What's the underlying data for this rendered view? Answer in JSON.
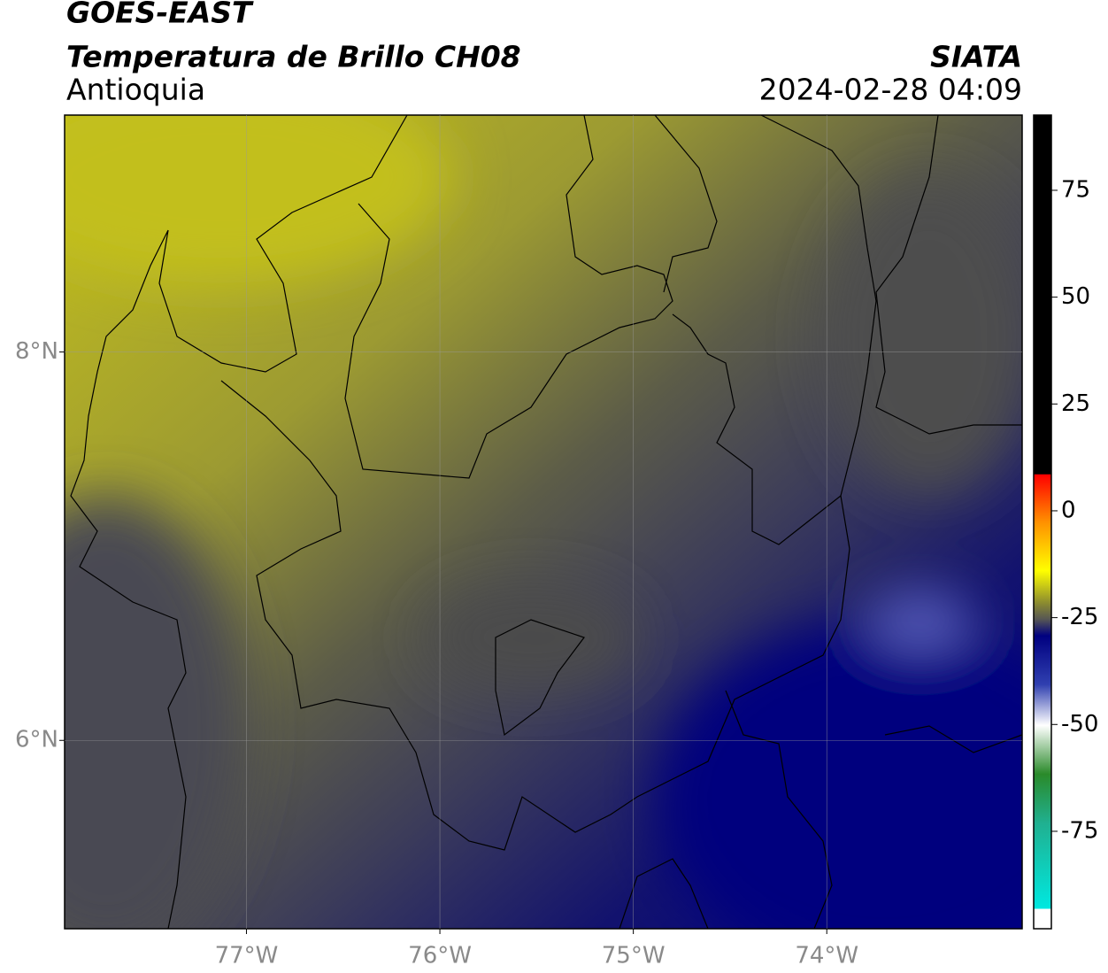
{
  "header": {
    "title": "GOES-EAST",
    "subtitle": "Temperatura de Brillo CH08",
    "region": "Antioquia",
    "source": "SIATA",
    "timestamp": "2024-02-28 04:09"
  },
  "map": {
    "xlim": [
      -77.94,
      -72.99
    ],
    "ylim": [
      5.03,
      9.22
    ],
    "xticks": [
      {
        "value": -77,
        "label": "77°W"
      },
      {
        "value": -76,
        "label": "76°W"
      },
      {
        "value": -75,
        "label": "75°W"
      },
      {
        "value": -74,
        "label": "74°W"
      }
    ],
    "yticks": [
      {
        "value": 6,
        "label": "6°N"
      },
      {
        "value": 8,
        "label": "8°N"
      }
    ]
  },
  "colorbar": {
    "ylim": [
      -97.8,
      92.6
    ],
    "yticks": [
      -75,
      -50,
      -25,
      0,
      25,
      50,
      75
    ]
  }
}
